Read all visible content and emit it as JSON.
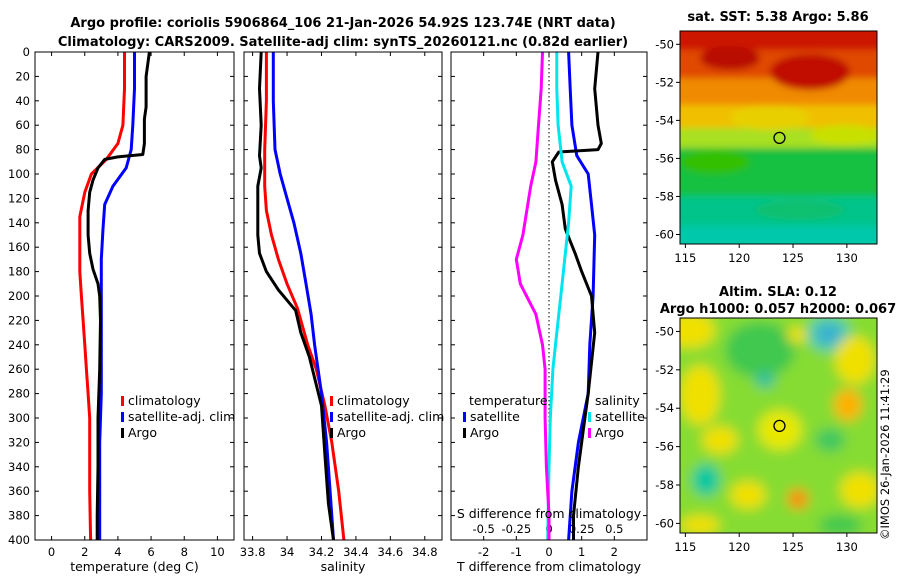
{
  "title": {
    "line1": "Argo profile: coriolis 5906864_106 21-Jan-2026 54.92S 123.74E (NRT data)",
    "line2": "Climatology: CARS2009. Satellite-adj clim: synTS_20260121.nc (0.82d earlier)"
  },
  "colors": {
    "climatology": "#ff0000",
    "satellite": "#0000ff",
    "argo": "#000000",
    "sal_satellite": "#00e5ee",
    "sal_argo": "#ff00ff"
  },
  "chart_data": [
    {
      "id": "temperature",
      "type": "line",
      "xlabel": "temperature (deg C)",
      "ylabel": "",
      "xlim": [
        -1,
        11
      ],
      "ylim": [
        400,
        0
      ],
      "xticks": [
        "0",
        "2",
        "4",
        "6",
        "8",
        "10"
      ],
      "yticks": [
        "0",
        "20",
        "40",
        "60",
        "80",
        "100",
        "120",
        "140",
        "160",
        "180",
        "200",
        "220",
        "240",
        "260",
        "280",
        "300",
        "320",
        "340",
        "360",
        "380",
        "400"
      ],
      "legend": [
        "climatology",
        "satellite-adj. clim",
        "Argo"
      ],
      "series": [
        {
          "name": "climatology",
          "color": "#ff0000",
          "points": [
            [
              4.4,
              0
            ],
            [
              4.4,
              30
            ],
            [
              4.3,
              60
            ],
            [
              4.0,
              75
            ],
            [
              3.3,
              88
            ],
            [
              2.4,
              100
            ],
            [
              2.0,
              115
            ],
            [
              1.7,
              135
            ],
            [
              1.7,
              160
            ],
            [
              1.7,
              180
            ],
            [
              1.8,
              200
            ],
            [
              1.9,
              220
            ],
            [
              2.0,
              240
            ],
            [
              2.1,
              260
            ],
            [
              2.2,
              280
            ],
            [
              2.3,
              300
            ],
            [
              2.3,
              330
            ],
            [
              2.3,
              360
            ],
            [
              2.35,
              400
            ]
          ]
        },
        {
          "name": "satellite-adj. clim",
          "color": "#0000ff",
          "points": [
            [
              5.0,
              0
            ],
            [
              5.0,
              30
            ],
            [
              4.9,
              60
            ],
            [
              4.8,
              80
            ],
            [
              4.5,
              95
            ],
            [
              3.7,
              110
            ],
            [
              3.2,
              125
            ],
            [
              3.1,
              145
            ],
            [
              3.0,
              170
            ],
            [
              3.0,
              200
            ],
            [
              3.0,
              240
            ],
            [
              3.0,
              280
            ],
            [
              2.9,
              320
            ],
            [
              2.9,
              360
            ],
            [
              2.9,
              400
            ]
          ]
        },
        {
          "name": "Argo",
          "color": "#000000",
          "points": [
            [
              5.9,
              0
            ],
            [
              5.7,
              20
            ],
            [
              5.7,
              45
            ],
            [
              5.6,
              55
            ],
            [
              5.6,
              75
            ],
            [
              5.5,
              84
            ],
            [
              4.0,
              86
            ],
            [
              3.2,
              88
            ],
            [
              2.8,
              95
            ],
            [
              2.5,
              105
            ],
            [
              2.3,
              115
            ],
            [
              2.2,
              130
            ],
            [
              2.2,
              150
            ],
            [
              2.3,
              165
            ],
            [
              2.5,
              178
            ],
            [
              2.8,
              190
            ],
            [
              2.9,
              200
            ],
            [
              2.95,
              220
            ],
            [
              2.9,
              260
            ],
            [
              2.8,
              300
            ],
            [
              2.8,
              340
            ],
            [
              2.75,
              380
            ],
            [
              2.75,
              400
            ]
          ]
        }
      ]
    },
    {
      "id": "salinity",
      "type": "line",
      "xlabel": "salinity",
      "ylabel": "",
      "xlim": [
        33.75,
        34.9
      ],
      "ylim": [
        400,
        0
      ],
      "xticks": [
        "33.8",
        "34",
        "34.2",
        "34.4",
        "34.6",
        "34.8"
      ],
      "legend": [
        "climatology",
        "satellite-adj. clim",
        "Argo"
      ],
      "series": [
        {
          "name": "climatology",
          "color": "#ff0000",
          "points": [
            [
              33.88,
              0
            ],
            [
              33.88,
              40
            ],
            [
              33.87,
              80
            ],
            [
              33.87,
              110
            ],
            [
              33.88,
              130
            ],
            [
              33.91,
              150
            ],
            [
              33.95,
              170
            ],
            [
              34.0,
              190
            ],
            [
              34.06,
              210
            ],
            [
              34.12,
              240
            ],
            [
              34.17,
              260
            ],
            [
              34.22,
              290
            ],
            [
              34.26,
              320
            ],
            [
              34.3,
              360
            ],
            [
              34.33,
              400
            ]
          ]
        },
        {
          "name": "satellite-adj. clim",
          "color": "#0000ff",
          "points": [
            [
              33.92,
              0
            ],
            [
              33.92,
              40
            ],
            [
              33.93,
              80
            ],
            [
              33.96,
              100
            ],
            [
              34.0,
              120
            ],
            [
              34.04,
              140
            ],
            [
              34.08,
              165
            ],
            [
              34.11,
              190
            ],
            [
              34.14,
              215
            ],
            [
              34.16,
              240
            ],
            [
              34.2,
              280
            ],
            [
              34.23,
              320
            ],
            [
              34.25,
              360
            ],
            [
              34.27,
              400
            ]
          ]
        },
        {
          "name": "Argo",
          "color": "#000000",
          "points": [
            [
              33.85,
              0
            ],
            [
              33.84,
              30
            ],
            [
              33.85,
              60
            ],
            [
              33.84,
              85
            ],
            [
              33.85,
              95
            ],
            [
              33.83,
              110
            ],
            [
              33.83,
              150
            ],
            [
              33.84,
              165
            ],
            [
              33.88,
              180
            ],
            [
              33.95,
              195
            ],
            [
              34.05,
              212
            ],
            [
              34.08,
              230
            ],
            [
              34.13,
              250
            ],
            [
              34.2,
              290
            ],
            [
              34.22,
              330
            ],
            [
              34.24,
              370
            ],
            [
              34.27,
              400
            ]
          ]
        }
      ]
    },
    {
      "id": "difference",
      "type": "line",
      "xlabel": "T difference from climatology",
      "ylabel": "",
      "xlim": [
        -3,
        3
      ],
      "ylim": [
        400,
        0
      ],
      "xticks": [
        "-2",
        "-1",
        "0",
        "1",
        "2"
      ],
      "xlabel_top": "S difference from climatology",
      "xticks_top": [
        "-0.5",
        "-0.25",
        "0",
        "0.25",
        "0.5"
      ],
      "legend_left_title": "temperature",
      "legend_right_title": "salinity",
      "legend_left": [
        "satellite",
        "Argo"
      ],
      "legend_right": [
        "satellite",
        "Argo"
      ],
      "series": [
        {
          "name": "T satellite",
          "color": "#0000ff",
          "points": [
            [
              0.6,
              0
            ],
            [
              0.65,
              30
            ],
            [
              0.7,
              60
            ],
            [
              0.85,
              85
            ],
            [
              1.2,
              100
            ],
            [
              1.3,
              125
            ],
            [
              1.4,
              150
            ],
            [
              1.35,
              200
            ],
            [
              1.25,
              240
            ],
            [
              1.2,
              280
            ],
            [
              0.9,
              320
            ],
            [
              0.7,
              360
            ],
            [
              0.6,
              400
            ]
          ]
        },
        {
          "name": "T Argo",
          "color": "#000000",
          "points": [
            [
              1.5,
              0
            ],
            [
              1.4,
              30
            ],
            [
              1.5,
              60
            ],
            [
              1.6,
              75
            ],
            [
              1.5,
              80
            ],
            [
              0.3,
              82
            ],
            [
              0.1,
              90
            ],
            [
              0.2,
              105
            ],
            [
              0.4,
              125
            ],
            [
              0.5,
              145
            ],
            [
              0.8,
              165
            ],
            [
              1.0,
              180
            ],
            [
              1.3,
              200
            ],
            [
              1.4,
              230
            ],
            [
              1.2,
              280
            ],
            [
              1.1,
              300
            ],
            [
              0.9,
              340
            ],
            [
              0.75,
              380
            ],
            [
              0.75,
              400
            ]
          ]
        },
        {
          "name": "S satellite",
          "color": "#00e5ee",
          "points": [
            [
              0.06,
              0
            ],
            [
              0.06,
              30
            ],
            [
              0.07,
              60
            ],
            [
              0.1,
              90
            ],
            [
              0.17,
              110
            ],
            [
              0.15,
              140
            ],
            [
              0.12,
              170
            ],
            [
              0.09,
              200
            ],
            [
              0.06,
              230
            ],
            [
              0.03,
              260
            ],
            [
              0.01,
              300
            ],
            [
              0.0,
              340
            ],
            [
              -0.01,
              400
            ]
          ]
        },
        {
          "name": "S Argo",
          "color": "#ff00ff",
          "points": [
            [
              -0.05,
              0
            ],
            [
              -0.06,
              30
            ],
            [
              -0.08,
              60
            ],
            [
              -0.1,
              90
            ],
            [
              -0.14,
              110
            ],
            [
              -0.2,
              150
            ],
            [
              -0.25,
              170
            ],
            [
              -0.22,
              190
            ],
            [
              -0.1,
              215
            ],
            [
              -0.05,
              240
            ],
            [
              -0.03,
              260
            ],
            [
              -0.03,
              300
            ],
            [
              -0.02,
              340
            ],
            [
              0.0,
              380
            ],
            [
              0.0,
              400
            ]
          ]
        }
      ]
    },
    {
      "id": "sst_map",
      "type": "heatmap",
      "title": "sat. SST: 5.38 Argo: 5.86",
      "xlim": [
        114.5,
        132.8
      ],
      "ylim": [
        -60.5,
        -49.3
      ],
      "xticks": [
        "115",
        "120",
        "125",
        "130"
      ],
      "yticks": [
        "-50",
        "-52",
        "-54",
        "-56",
        "-58",
        "-60"
      ],
      "marker": {
        "lon": 123.74,
        "lat": -54.92
      }
    },
    {
      "id": "sla_map",
      "type": "heatmap",
      "title": "Altim. SLA: 0.12",
      "subtitle": "Argo h1000: 0.057 h2000: 0.067",
      "xlim": [
        114.5,
        132.8
      ],
      "ylim": [
        -60.5,
        -49.3
      ],
      "xticks": [
        "115",
        "120",
        "125",
        "130"
      ],
      "yticks": [
        "-50",
        "-52",
        "-54",
        "-56",
        "-58",
        "-60"
      ],
      "marker": {
        "lon": 123.74,
        "lat": -54.92
      }
    }
  ],
  "watermark": "©IMOS 26-Jan-2026 11:41:29"
}
